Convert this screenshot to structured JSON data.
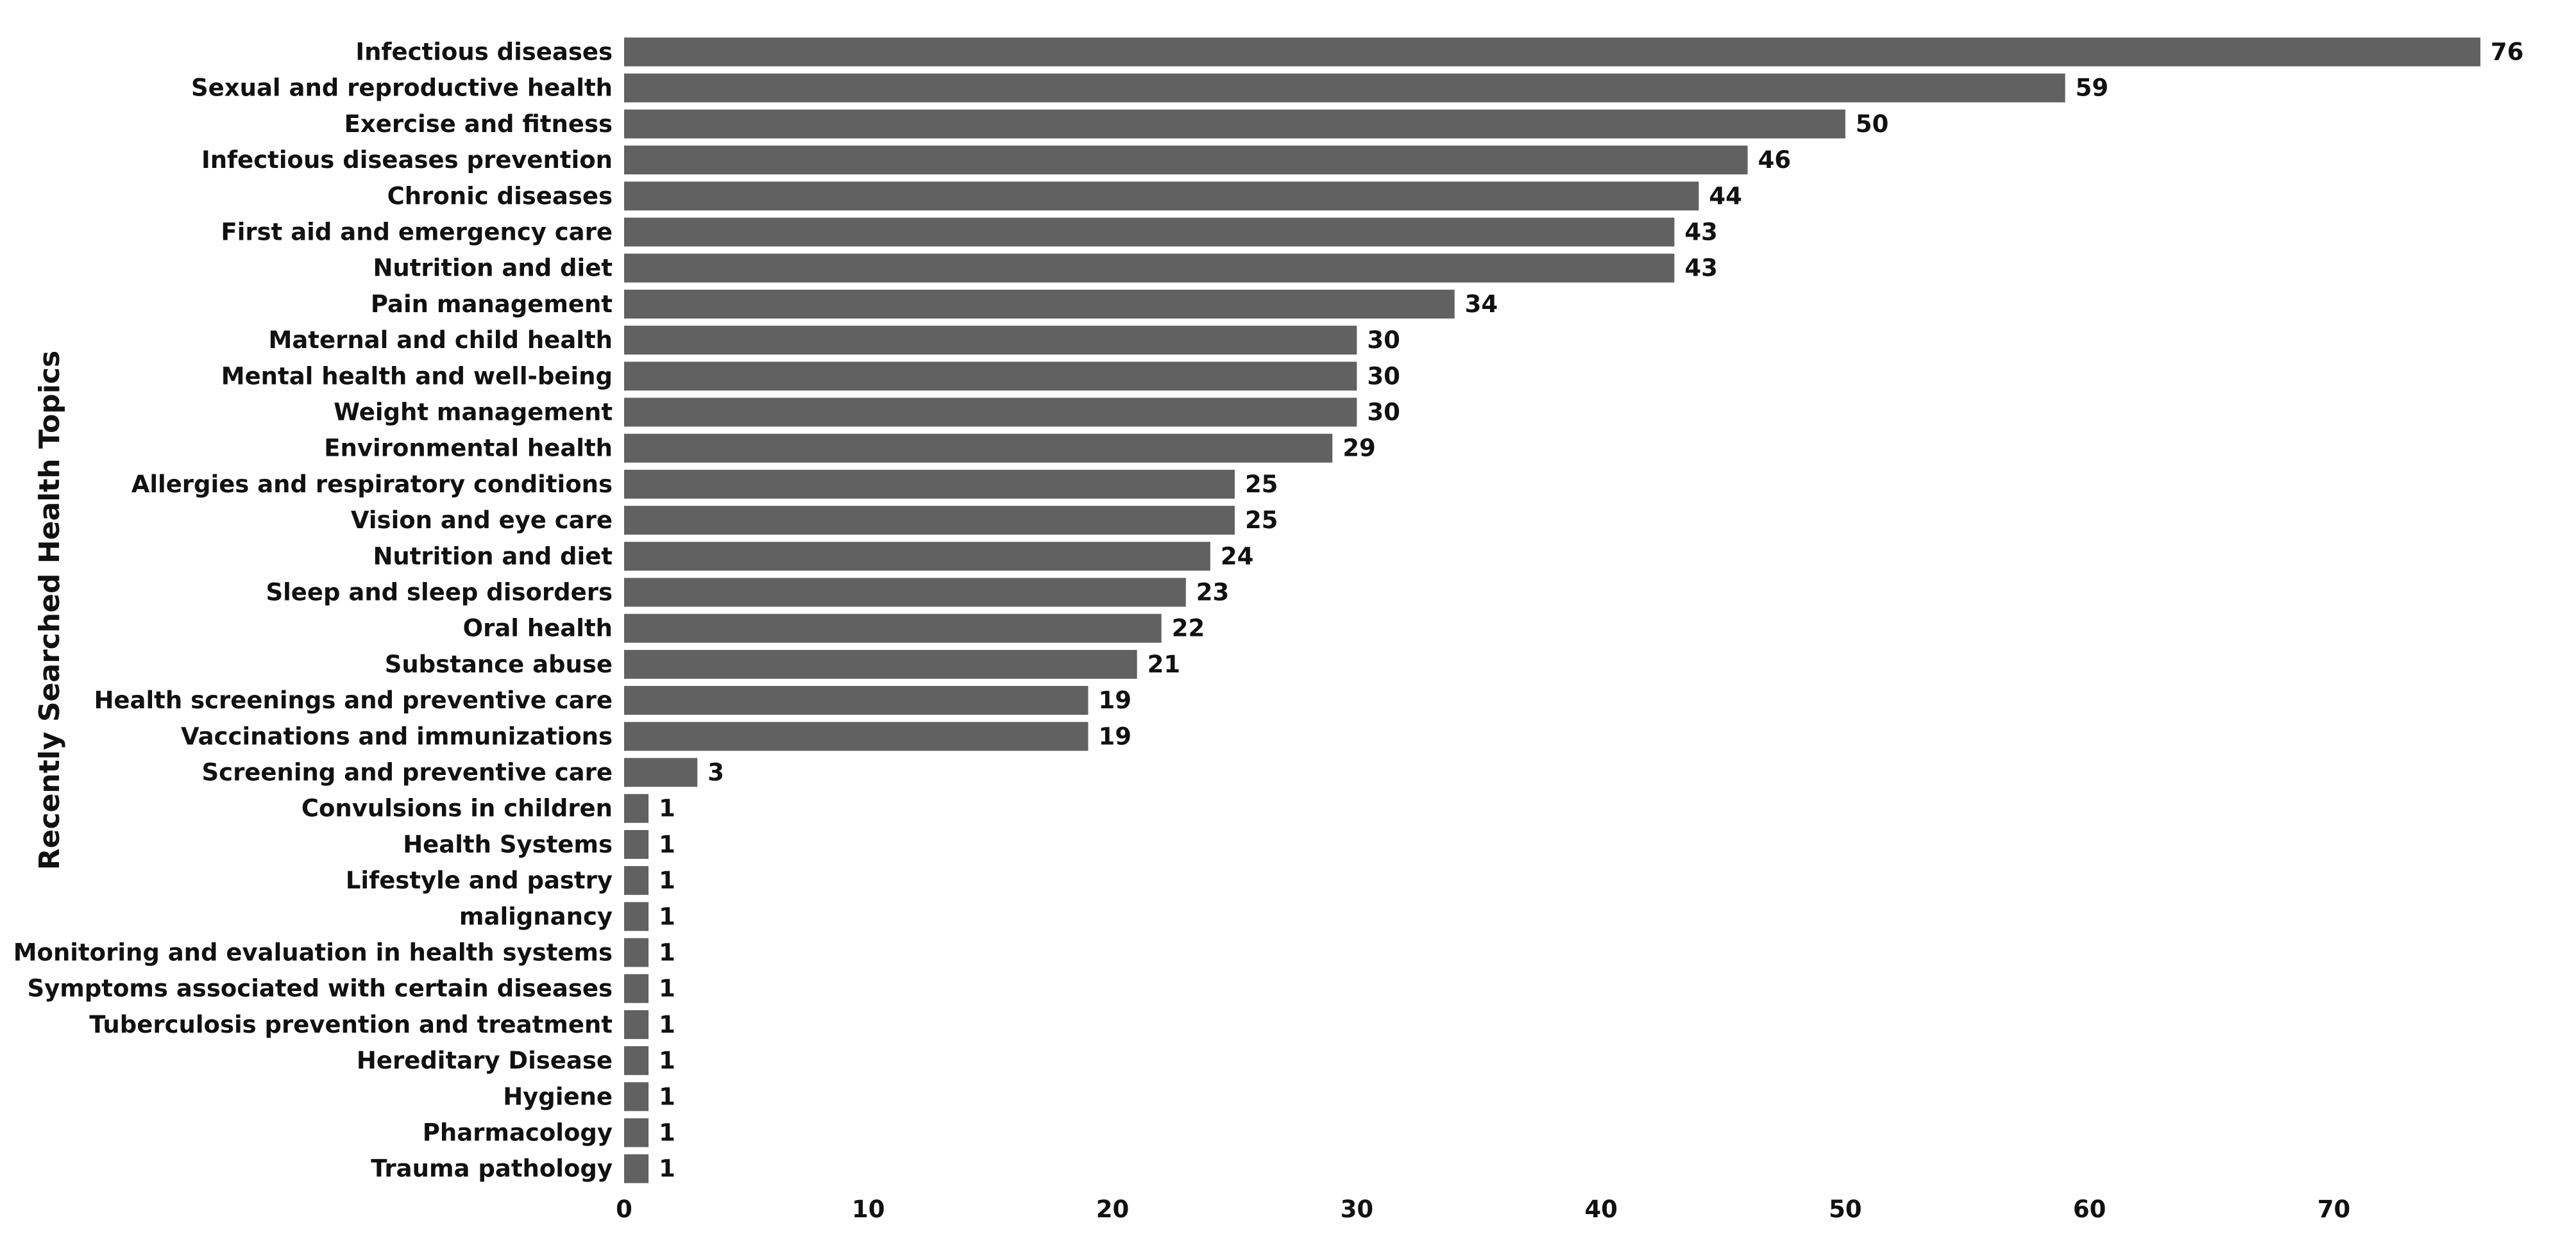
{
  "chart_data": {
    "type": "bar",
    "orientation": "horizontal",
    "title": "",
    "xlabel": "",
    "ylabel": "Recently Searched Health Topics",
    "xlim": [
      0,
      77
    ],
    "xticks": [
      0,
      10,
      20,
      30,
      40,
      50,
      60,
      70
    ],
    "grid": false,
    "bar_color": "#616161",
    "categories": [
      "Infectious diseases",
      "Sexual and reproductive health",
      "Exercise and fitness",
      "Infectious diseases prevention",
      "Chronic diseases",
      "First aid and emergency care",
      "Nutrition and diet",
      "Pain management",
      "Maternal and child health",
      "Mental health and well-being",
      "Weight management",
      "Environmental health",
      "Allergies and respiratory conditions",
      "Vision and eye care",
      "Nutrition and diet",
      "Sleep and sleep disorders",
      "Oral health",
      "Substance abuse",
      "Health screenings and preventive care",
      "Vaccinations and immunizations",
      "Screening and preventive care",
      "Convulsions in children",
      "Health Systems",
      "Lifestyle and pastry",
      "malignancy",
      "Monitoring and evaluation in health systems",
      "Symptoms associated with certain diseases",
      "Tuberculosis prevention and treatment",
      "Hereditary Disease",
      "Hygiene",
      "Pharmacology",
      "Trauma pathology"
    ],
    "values": [
      76,
      59,
      50,
      46,
      44,
      43,
      43,
      34,
      30,
      30,
      30,
      29,
      25,
      25,
      24,
      23,
      22,
      21,
      19,
      19,
      3,
      1,
      1,
      1,
      1,
      1,
      1,
      1,
      1,
      1,
      1,
      1
    ]
  }
}
